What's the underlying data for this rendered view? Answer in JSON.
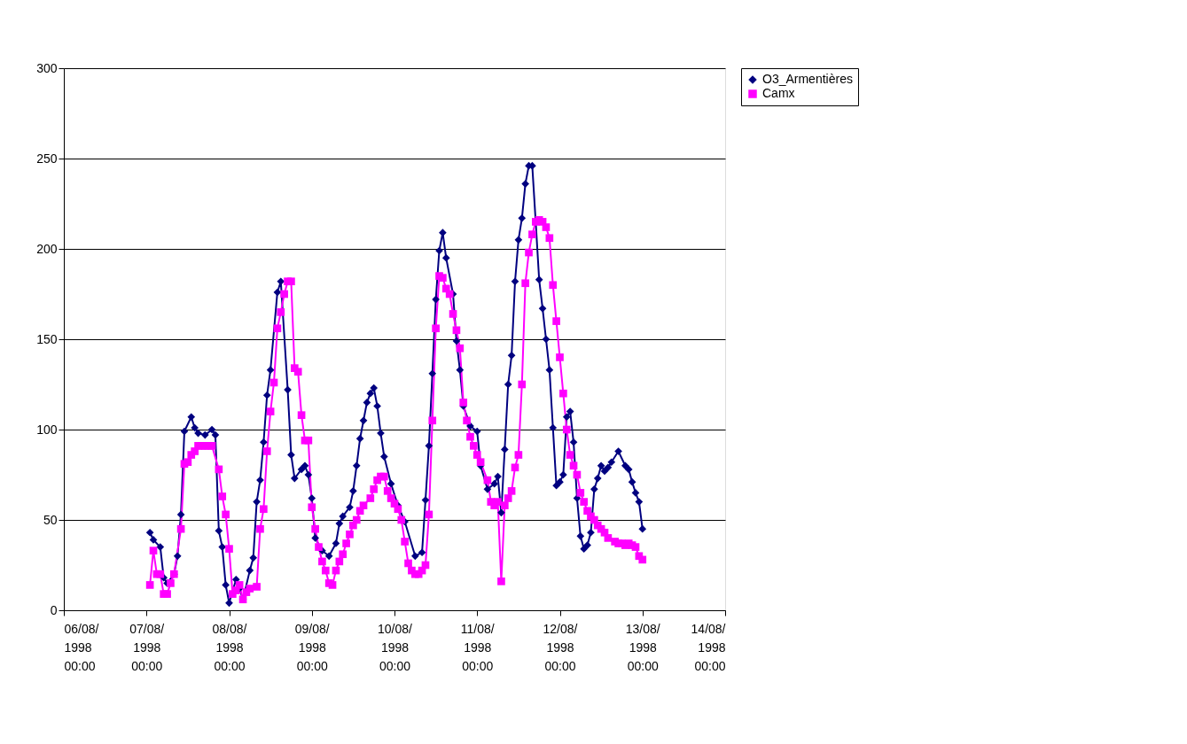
{
  "chart_data": {
    "type": "line",
    "xlim": [
      "1998-08-06T00:00",
      "1998-08-14T00:00"
    ],
    "xticks": [
      {
        "value": "1998-08-06T00:00",
        "label": "06/08/\n1998\n00:00"
      },
      {
        "value": "1998-08-07T00:00",
        "label": "07/08/\n1998\n00:00"
      },
      {
        "value": "1998-08-08T00:00",
        "label": "08/08/\n1998\n00:00"
      },
      {
        "value": "1998-08-09T00:00",
        "label": "09/08/\n1998\n00:00"
      },
      {
        "value": "1998-08-10T00:00",
        "label": "10/08/\n1998\n00:00"
      },
      {
        "value": "1998-08-11T00:00",
        "label": "11/08/\n1998\n00:00"
      },
      {
        "value": "1998-08-12T00:00",
        "label": "12/08/\n1998\n00:00"
      },
      {
        "value": "1998-08-13T00:00",
        "label": "13/08/\n1998\n00:00"
      },
      {
        "value": "1998-08-14T00:00",
        "label": "14/08/\n1998\n00:00"
      }
    ],
    "ylim": [
      0,
      300
    ],
    "yticks": [
      0,
      50,
      100,
      150,
      200,
      250,
      300
    ],
    "grid": "y",
    "legend": "right",
    "series": [
      {
        "name": "O3_Armentières",
        "color": "#000080",
        "marker": "diamond",
        "x": [
          "1998-08-07T01:00",
          "1998-08-07T02:00",
          "1998-08-07T04:00",
          "1998-08-07T05:00",
          "1998-08-07T06:00",
          "1998-08-07T08:00",
          "1998-08-07T09:00",
          "1998-08-07T10:00",
          "1998-08-07T11:00",
          "1998-08-07T13:00",
          "1998-08-07T14:00",
          "1998-08-07T15:00",
          "1998-08-07T17:00",
          "1998-08-07T19:00",
          "1998-08-07T20:00",
          "1998-08-07T21:00",
          "1998-08-07T22:00",
          "1998-08-07T23:00",
          "1998-08-08T00:00",
          "1998-08-08T02:00",
          "1998-08-08T03:00",
          "1998-08-08T04:00",
          "1998-08-08T06:00",
          "1998-08-08T07:00",
          "1998-08-08T08:00",
          "1998-08-08T09:00",
          "1998-08-08T10:00",
          "1998-08-08T11:00",
          "1998-08-08T12:00",
          "1998-08-08T14:00",
          "1998-08-08T15:00",
          "1998-08-08T17:00",
          "1998-08-08T18:00",
          "1998-08-08T19:00",
          "1998-08-08T21:00",
          "1998-08-08T22:00",
          "1998-08-08T23:00",
          "1998-08-09T00:00",
          "1998-08-09T01:00",
          "1998-08-09T03:00",
          "1998-08-09T05:00",
          "1998-08-09T07:00",
          "1998-08-09T08:00",
          "1998-08-09T09:00",
          "1998-08-09T11:00",
          "1998-08-09T12:00",
          "1998-08-09T13:00",
          "1998-08-09T14:00",
          "1998-08-09T15:00",
          "1998-08-09T16:00",
          "1998-08-09T17:00",
          "1998-08-09T18:00",
          "1998-08-09T19:00",
          "1998-08-09T20:00",
          "1998-08-09T21:00",
          "1998-08-09T23:00",
          "1998-08-10T01:00",
          "1998-08-10T03:00",
          "1998-08-10T06:00",
          "1998-08-10T08:00",
          "1998-08-10T09:00",
          "1998-08-10T10:00",
          "1998-08-10T11:00",
          "1998-08-10T12:00",
          "1998-08-10T13:00",
          "1998-08-10T14:00",
          "1998-08-10T15:00",
          "1998-08-10T17:00",
          "1998-08-10T18:00",
          "1998-08-10T19:00",
          "1998-08-10T20:00",
          "1998-08-10T22:00",
          "1998-08-11T00:00",
          "1998-08-11T01:00",
          "1998-08-11T03:00",
          "1998-08-11T05:00",
          "1998-08-11T06:00",
          "1998-08-11T07:00",
          "1998-08-11T08:00",
          "1998-08-11T09:00",
          "1998-08-11T10:00",
          "1998-08-11T11:00",
          "1998-08-11T12:00",
          "1998-08-11T13:00",
          "1998-08-11T14:00",
          "1998-08-11T15:00",
          "1998-08-11T16:00",
          "1998-08-11T17:00",
          "1998-08-11T18:00",
          "1998-08-11T19:00",
          "1998-08-11T20:00",
          "1998-08-11T21:00",
          "1998-08-11T22:00",
          "1998-08-11T23:00",
          "1998-08-12T00:00",
          "1998-08-12T01:00",
          "1998-08-12T02:00",
          "1998-08-12T03:00",
          "1998-08-12T04:00",
          "1998-08-12T05:00",
          "1998-08-12T06:00",
          "1998-08-12T07:00",
          "1998-08-12T08:00",
          "1998-08-12T09:00",
          "1998-08-12T10:00",
          "1998-08-12T11:00",
          "1998-08-12T12:00",
          "1998-08-12T13:00",
          "1998-08-12T14:00",
          "1998-08-12T15:00",
          "1998-08-12T17:00",
          "1998-08-12T19:00",
          "1998-08-12T20:00",
          "1998-08-12T21:00",
          "1998-08-12T22:00",
          "1998-08-12T23:00",
          "1998-08-13T00:00"
        ],
        "values": [
          43,
          39,
          35,
          18,
          15,
          20,
          30,
          53,
          99,
          107,
          101,
          98,
          97,
          100,
          97,
          44,
          35,
          14,
          4,
          17,
          12,
          6,
          22,
          29,
          60,
          72,
          93,
          119,
          133,
          176,
          182,
          122,
          86,
          73,
          78,
          80,
          75,
          62,
          40,
          33,
          30,
          37,
          48,
          52,
          57,
          66,
          80,
          95,
          105,
          115,
          120,
          123,
          113,
          98,
          85,
          70,
          58,
          49,
          30,
          32,
          61,
          91,
          131,
          172,
          199,
          209,
          195,
          175,
          149,
          133,
          113,
          102,
          99,
          80,
          67,
          70,
          74,
          54,
          89,
          125,
          141,
          182,
          205,
          217,
          236,
          246,
          246,
          215,
          183,
          167,
          150,
          133,
          101,
          69,
          71,
          75,
          107,
          110,
          93,
          62,
          41,
          34,
          36,
          43,
          67,
          73,
          80,
          77,
          79,
          82,
          88,
          80,
          78,
          71,
          65,
          60,
          45
        ]
      },
      {
        "name": "Camx",
        "color": "#ff00ff",
        "marker": "square",
        "x": [
          "1998-08-07T01:00",
          "1998-08-07T02:00",
          "1998-08-07T03:00",
          "1998-08-07T04:00",
          "1998-08-07T05:00",
          "1998-08-07T06:00",
          "1998-08-07T07:00",
          "1998-08-07T08:00",
          "1998-08-07T10:00",
          "1998-08-07T11:00",
          "1998-08-07T12:00",
          "1998-08-07T13:00",
          "1998-08-07T14:00",
          "1998-08-07T15:00",
          "1998-08-07T16:00",
          "1998-08-07T17:00",
          "1998-08-07T18:00",
          "1998-08-07T19:00",
          "1998-08-07T21:00",
          "1998-08-07T22:00",
          "1998-08-07T23:00",
          "1998-08-08T00:00",
          "1998-08-08T01:00",
          "1998-08-08T02:00",
          "1998-08-08T03:00",
          "1998-08-08T04:00",
          "1998-08-08T05:00",
          "1998-08-08T06:00",
          "1998-08-08T08:00",
          "1998-08-08T09:00",
          "1998-08-08T10:00",
          "1998-08-08T11:00",
          "1998-08-08T12:00",
          "1998-08-08T13:00",
          "1998-08-08T14:00",
          "1998-08-08T15:00",
          "1998-08-08T16:00",
          "1998-08-08T17:00",
          "1998-08-08T18:00",
          "1998-08-08T19:00",
          "1998-08-08T20:00",
          "1998-08-08T21:00",
          "1998-08-08T22:00",
          "1998-08-08T23:00",
          "1998-08-09T00:00",
          "1998-08-09T01:00",
          "1998-08-09T02:00",
          "1998-08-09T03:00",
          "1998-08-09T04:00",
          "1998-08-09T05:00",
          "1998-08-09T06:00",
          "1998-08-09T07:00",
          "1998-08-09T08:00",
          "1998-08-09T09:00",
          "1998-08-09T10:00",
          "1998-08-09T11:00",
          "1998-08-09T12:00",
          "1998-08-09T13:00",
          "1998-08-09T14:00",
          "1998-08-09T15:00",
          "1998-08-09T17:00",
          "1998-08-09T18:00",
          "1998-08-09T19:00",
          "1998-08-09T20:00",
          "1998-08-09T21:00",
          "1998-08-09T22:00",
          "1998-08-09T23:00",
          "1998-08-10T00:00",
          "1998-08-10T01:00",
          "1998-08-10T02:00",
          "1998-08-10T03:00",
          "1998-08-10T04:00",
          "1998-08-10T05:00",
          "1998-08-10T06:00",
          "1998-08-10T07:00",
          "1998-08-10T08:00",
          "1998-08-10T09:00",
          "1998-08-10T10:00",
          "1998-08-10T11:00",
          "1998-08-10T12:00",
          "1998-08-10T13:00",
          "1998-08-10T14:00",
          "1998-08-10T15:00",
          "1998-08-10T16:00",
          "1998-08-10T17:00",
          "1998-08-10T18:00",
          "1998-08-10T19:00",
          "1998-08-10T20:00",
          "1998-08-10T21:00",
          "1998-08-10T22:00",
          "1998-08-10T23:00",
          "1998-08-11T00:00",
          "1998-08-11T01:00",
          "1998-08-11T03:00",
          "1998-08-11T04:00",
          "1998-08-11T05:00",
          "1998-08-11T06:00",
          "1998-08-11T07:00",
          "1998-08-11T08:00",
          "1998-08-11T09:00",
          "1998-08-11T10:00",
          "1998-08-11T11:00",
          "1998-08-11T12:00",
          "1998-08-11T13:00",
          "1998-08-11T14:00",
          "1998-08-11T15:00",
          "1998-08-11T16:00",
          "1998-08-11T17:00",
          "1998-08-11T18:00",
          "1998-08-11T19:00",
          "1998-08-11T20:00",
          "1998-08-11T21:00",
          "1998-08-11T22:00",
          "1998-08-11T23:00",
          "1998-08-12T00:00",
          "1998-08-12T01:00",
          "1998-08-12T02:00",
          "1998-08-12T03:00",
          "1998-08-12T04:00",
          "1998-08-12T05:00",
          "1998-08-12T06:00",
          "1998-08-12T07:00",
          "1998-08-12T08:00",
          "1998-08-12T09:00",
          "1998-08-12T10:00",
          "1998-08-12T11:00",
          "1998-08-12T12:00",
          "1998-08-12T13:00",
          "1998-08-12T14:00",
          "1998-08-12T16:00",
          "1998-08-12T17:00",
          "1998-08-12T18:00",
          "1998-08-12T19:00",
          "1998-08-12T20:00",
          "1998-08-12T21:00",
          "1998-08-12T22:00",
          "1998-08-12T23:00",
          "1998-08-13T00:00"
        ],
        "values": [
          14,
          33,
          20,
          20,
          9,
          9,
          15,
          20,
          45,
          81,
          82,
          86,
          88,
          91,
          91,
          91,
          91,
          91,
          78,
          63,
          53,
          34,
          9,
          11,
          14,
          6,
          10,
          12,
          13,
          45,
          56,
          88,
          110,
          126,
          156,
          165,
          175,
          182,
          182,
          134,
          132,
          108,
          94,
          94,
          57,
          45,
          35,
          27,
          22,
          15,
          14,
          22,
          27,
          31,
          37,
          42,
          47,
          50,
          55,
          58,
          62,
          67,
          72,
          74,
          74,
          66,
          62,
          59,
          56,
          50,
          38,
          26,
          22,
          20,
          20,
          22,
          25,
          53,
          105,
          156,
          185,
          184,
          178,
          175,
          164,
          155,
          145,
          115,
          105,
          96,
          91,
          86,
          82,
          72,
          60,
          58,
          60,
          16,
          58,
          62,
          66,
          79,
          86,
          125,
          181,
          198,
          208,
          215,
          216,
          215,
          212,
          206,
          180,
          160,
          140,
          120,
          100,
          86,
          80,
          75,
          65,
          60,
          55,
          52,
          50,
          47,
          45,
          43,
          40,
          38,
          37,
          37,
          36,
          37,
          36,
          35,
          30,
          28
        ]
      }
    ]
  }
}
